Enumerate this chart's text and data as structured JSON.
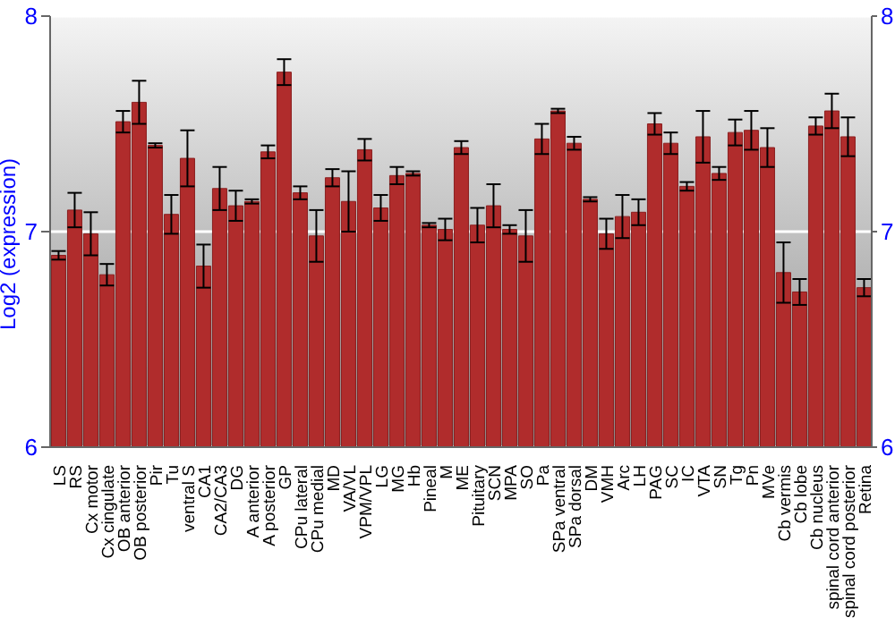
{
  "chart_data": {
    "type": "bar",
    "ylabel": "Log2 (expression)",
    "categories": [
      "LS",
      "RS",
      "Cx motor",
      "Cx cingulate",
      "OB anterior",
      "OB posterior",
      "Pir",
      "Tu",
      "ventral S",
      "CA1",
      "CA2/CA3",
      "DG",
      "A anterior",
      "A posterior",
      "GP",
      "CPu lateral",
      "CPu medial",
      "MD",
      "VA/VL",
      "VPM/VPL",
      "LG",
      "MG",
      "Hb",
      "Pineal",
      "M",
      "ME",
      "Pituitary",
      "SCN",
      "MPA",
      "SO",
      "Pa",
      "SPa ventral",
      "SPa dorsal",
      "DM",
      "VMH",
      "Arc",
      "LH",
      "PAG",
      "SC",
      "IC",
      "VTA",
      "SN",
      "Tg",
      "Pn",
      "MVe",
      "Cb vermis",
      "Cb lobe",
      "Cb nucleus",
      "spinal cord anterior",
      "spinal cord posterior",
      "Retina"
    ],
    "values": [
      6.89,
      7.1,
      6.99,
      6.8,
      7.51,
      7.6,
      7.4,
      7.08,
      7.34,
      6.84,
      7.2,
      7.12,
      7.14,
      7.37,
      7.74,
      7.18,
      6.98,
      7.25,
      7.14,
      7.38,
      7.11,
      7.26,
      7.27,
      7.03,
      7.01,
      7.39,
      7.03,
      7.12,
      7.01,
      6.98,
      7.43,
      7.56,
      7.41,
      7.15,
      6.99,
      7.07,
      7.09,
      7.5,
      7.41,
      7.21,
      7.44,
      7.27,
      7.46,
      7.47,
      7.39,
      6.81,
      6.72,
      7.49,
      7.56,
      7.44,
      6.74
    ],
    "errors": [
      0.02,
      0.08,
      0.1,
      0.05,
      0.05,
      0.1,
      0.01,
      0.09,
      0.13,
      0.1,
      0.1,
      0.07,
      0.01,
      0.03,
      0.06,
      0.03,
      0.12,
      0.04,
      0.14,
      0.05,
      0.06,
      0.04,
      0.01,
      0.01,
      0.05,
      0.03,
      0.08,
      0.1,
      0.02,
      0.12,
      0.07,
      0.01,
      0.03,
      0.01,
      0.07,
      0.1,
      0.06,
      0.05,
      0.05,
      0.02,
      0.12,
      0.03,
      0.06,
      0.09,
      0.09,
      0.14,
      0.06,
      0.04,
      0.08,
      0.09,
      0.04
    ],
    "color": "#b02c2c",
    "ylim": [
      6,
      8
    ],
    "yticks": [
      6,
      7,
      8
    ],
    "y2lim": [
      6,
      8
    ],
    "y2ticks": [
      6,
      7,
      8
    ],
    "grid": "y"
  }
}
